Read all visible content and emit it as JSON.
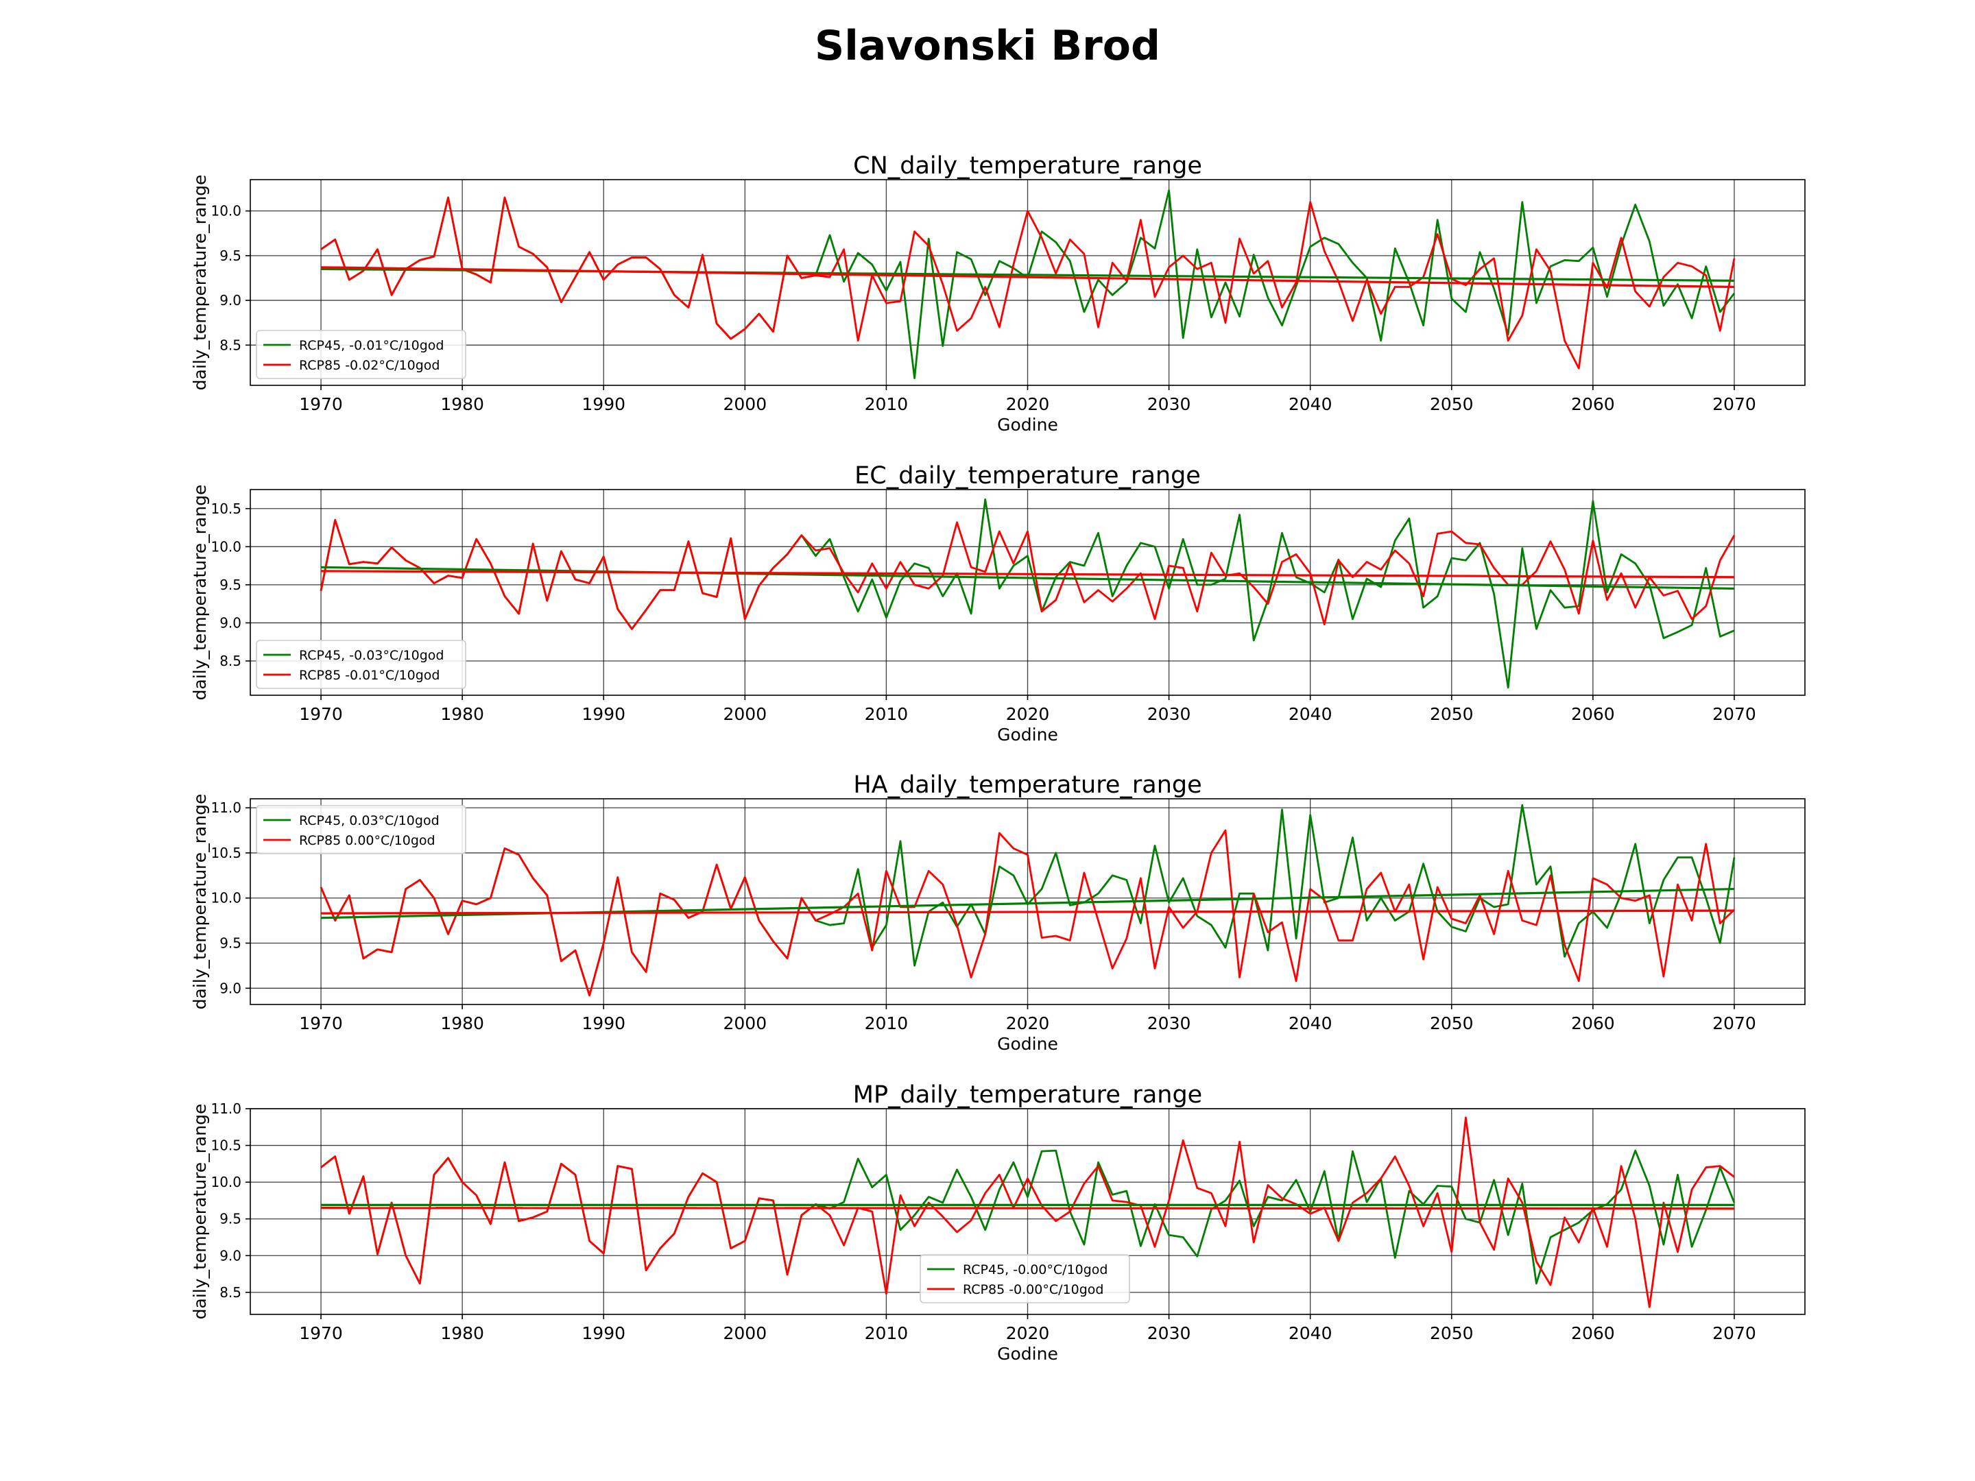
{
  "figure": {
    "title": "Slavonski Brod"
  },
  "colors": {
    "rcp45": "#008000",
    "rcp85": "#ff0000",
    "trend_overlap": "#7f4000",
    "axes": "#000000",
    "grid": "#000000"
  },
  "chart_data": [
    {
      "type": "line",
      "title": "CN_daily_temperature_range",
      "xlabel": "Godine",
      "ylabel": "daily_temperature_range",
      "xlim": [
        1965,
        2075
      ],
      "ylim": [
        8.05,
        10.35
      ],
      "xticks": [
        1970,
        1980,
        1990,
        2000,
        2010,
        2020,
        2030,
        2040,
        2050,
        2060,
        2070
      ],
      "yticks": [
        8.5,
        9.0,
        9.5,
        10.0
      ],
      "ytick_labels": [
        "8.5",
        "9.0",
        "9.5",
        "10.0"
      ],
      "grid": true,
      "legend_position": "lower-left",
      "series": [
        {
          "name": "RCP45, -0.01°C/10god",
          "color": "#008000",
          "x_start": 1970,
          "values": [
            9.57,
            9.68,
            9.23,
            9.33,
            9.57,
            9.06,
            9.35,
            9.45,
            9.49,
            10.15,
            9.35,
            9.29,
            9.2,
            10.15,
            9.6,
            9.52,
            9.37,
            8.98,
            9.26,
            9.54,
            9.23,
            9.4,
            9.48,
            9.48,
            9.35,
            9.06,
            8.92,
            9.51,
            8.74,
            8.57,
            8.68,
            8.85,
            8.65,
            9.5,
            9.25,
            9.28,
            9.73,
            9.21,
            9.53,
            9.4,
            9.11,
            9.43,
            8.13,
            9.69,
            8.49,
            9.54,
            9.46,
            9.06,
            9.44,
            9.36,
            9.25,
            9.77,
            9.65,
            9.44,
            8.87,
            9.23,
            9.06,
            9.2,
            9.7,
            9.58,
            10.23,
            8.58,
            9.57,
            8.81,
            9.2,
            8.82,
            9.51,
            9.03,
            8.72,
            9.16,
            9.6,
            9.7,
            9.63,
            9.42,
            9.25,
            8.55,
            9.58,
            9.2,
            8.72,
            9.9,
            9.02,
            8.87,
            9.54,
            9.13,
            8.62,
            10.1,
            8.97,
            9.38,
            9.45,
            9.44,
            9.59,
            9.04,
            9.62,
            10.07,
            9.66,
            8.94,
            9.18,
            8.8,
            9.38,
            8.87,
            9.08
          ]
        },
        {
          "name": "RCP85 -0.02°C/10god",
          "color": "#ff0000",
          "x_start": 1970,
          "values": [
            9.57,
            9.68,
            9.23,
            9.33,
            9.57,
            9.06,
            9.35,
            9.45,
            9.49,
            10.15,
            9.35,
            9.29,
            9.2,
            10.15,
            9.6,
            9.52,
            9.37,
            8.98,
            9.26,
            9.54,
            9.23,
            9.4,
            9.48,
            9.48,
            9.35,
            9.06,
            8.92,
            9.51,
            8.74,
            8.57,
            8.68,
            8.85,
            8.65,
            9.5,
            9.25,
            9.28,
            9.26,
            9.57,
            8.55,
            9.28,
            8.97,
            8.99,
            9.77,
            9.61,
            9.18,
            8.66,
            8.8,
            9.15,
            8.7,
            9.4,
            10.0,
            9.7,
            9.3,
            9.68,
            9.52,
            8.7,
            9.42,
            9.22,
            9.9,
            9.04,
            9.37,
            9.5,
            9.35,
            9.42,
            8.75,
            9.69,
            9.3,
            9.44,
            8.92,
            9.2,
            10.1,
            9.55,
            9.21,
            8.77,
            9.23,
            8.85,
            9.15,
            9.15,
            9.26,
            9.74,
            9.24,
            9.17,
            9.35,
            9.47,
            8.55,
            8.83,
            9.57,
            9.33,
            8.55,
            8.24,
            9.42,
            9.14,
            9.7,
            9.1,
            8.93,
            9.26,
            9.42,
            9.38,
            9.28,
            8.66,
            9.47
          ]
        }
      ],
      "trend_lines": [
        {
          "series": "RCP45, -0.01°C/10god",
          "y_start": 9.35,
          "y_end": 9.22
        },
        {
          "series": "RCP85 -0.02°C/10god",
          "y_start": 9.37,
          "y_end": 9.15
        }
      ]
    },
    {
      "type": "line",
      "title": "EC_daily_temperature_range",
      "xlabel": "Godine",
      "ylabel": "daily_temperature_range",
      "xlim": [
        1965,
        2075
      ],
      "ylim": [
        8.05,
        10.75
      ],
      "xticks": [
        1970,
        1980,
        1990,
        2000,
        2010,
        2020,
        2030,
        2040,
        2050,
        2060,
        2070
      ],
      "yticks": [
        8.5,
        9.0,
        9.5,
        10.0,
        10.5
      ],
      "ytick_labels": [
        "8.5",
        "9.0",
        "9.5",
        "10.0",
        "10.5"
      ],
      "grid": true,
      "legend_position": "lower-left",
      "series": [
        {
          "name": "RCP45, -0.03°C/10god",
          "color": "#008000",
          "x_start": 1970,
          "values": [
            9.42,
            10.35,
            9.77,
            9.8,
            9.78,
            9.99,
            9.82,
            9.72,
            9.52,
            9.62,
            9.59,
            10.1,
            9.78,
            9.35,
            9.12,
            10.04,
            9.29,
            9.94,
            9.57,
            9.52,
            9.87,
            9.18,
            8.92,
            9.17,
            9.43,
            9.43,
            10.07,
            9.39,
            9.34,
            10.11,
            9.05,
            9.49,
            9.72,
            9.9,
            10.15,
            9.88,
            10.1,
            9.6,
            9.15,
            9.57,
            9.07,
            9.55,
            9.78,
            9.72,
            9.35,
            9.65,
            9.12,
            10.62,
            9.45,
            9.75,
            9.88,
            9.15,
            9.6,
            9.8,
            9.75,
            10.18,
            9.35,
            9.75,
            10.05,
            10.0,
            9.45,
            10.1,
            9.5,
            9.5,
            9.58,
            10.42,
            8.77,
            9.3,
            10.18,
            9.6,
            9.52,
            9.4,
            9.83,
            9.05,
            9.58,
            9.47,
            10.08,
            10.37,
            9.2,
            9.35,
            9.85,
            9.82,
            10.05,
            9.38,
            8.15,
            9.98,
            8.92,
            9.43,
            9.2,
            9.22,
            10.6,
            9.4,
            9.9,
            9.78,
            9.5,
            8.8,
            8.88,
            8.97,
            9.72,
            8.82,
            8.9
          ]
        },
        {
          "name": "RCP85 -0.01°C/10god",
          "color": "#ff0000",
          "x_start": 1970,
          "values": [
            9.42,
            10.35,
            9.77,
            9.8,
            9.78,
            9.99,
            9.82,
            9.72,
            9.52,
            9.62,
            9.59,
            10.1,
            9.78,
            9.35,
            9.12,
            10.04,
            9.29,
            9.94,
            9.57,
            9.52,
            9.87,
            9.18,
            8.92,
            9.17,
            9.43,
            9.43,
            10.07,
            9.39,
            9.34,
            10.11,
            9.05,
            9.49,
            9.72,
            9.9,
            10.15,
            9.95,
            9.98,
            9.65,
            9.4,
            9.78,
            9.45,
            9.8,
            9.5,
            9.45,
            9.62,
            10.32,
            9.73,
            9.67,
            10.2,
            9.78,
            10.2,
            9.15,
            9.3,
            9.78,
            9.27,
            9.43,
            9.28,
            9.45,
            9.65,
            9.05,
            9.75,
            9.72,
            9.15,
            9.92,
            9.62,
            9.65,
            9.47,
            9.25,
            9.8,
            9.9,
            9.65,
            8.98,
            9.82,
            9.6,
            9.8,
            9.7,
            9.95,
            9.78,
            9.35,
            10.17,
            10.2,
            10.05,
            10.03,
            9.72,
            9.5,
            9.5,
            9.68,
            10.07,
            9.7,
            9.12,
            10.08,
            9.3,
            9.65,
            9.2,
            9.6,
            9.36,
            9.42,
            9.05,
            9.22,
            9.82,
            10.15
          ]
        }
      ],
      "trend_lines": [
        {
          "series": "RCP45, -0.03°C/10god",
          "y_start": 9.73,
          "y_end": 9.45
        },
        {
          "series": "RCP85 -0.01°C/10god",
          "y_start": 9.68,
          "y_end": 9.6
        }
      ]
    },
    {
      "type": "line",
      "title": "HA_daily_temperature_range",
      "xlabel": "Godine",
      "ylabel": "daily_temperature_range",
      "xlim": [
        1965,
        2075
      ],
      "ylim": [
        8.82,
        11.1
      ],
      "xticks": [
        1970,
        1980,
        1990,
        2000,
        2010,
        2020,
        2030,
        2040,
        2050,
        2060,
        2070
      ],
      "yticks": [
        9.0,
        9.5,
        10.0,
        10.5,
        11.0
      ],
      "ytick_labels": [
        "9.0",
        "9.5",
        "10.0",
        "10.5",
        "11.0"
      ],
      "grid": true,
      "legend_position": "upper-left",
      "series": [
        {
          "name": "RCP45, 0.03°C/10god",
          "color": "#008000",
          "x_start": 1970,
          "values": [
            10.12,
            9.75,
            10.03,
            9.33,
            9.43,
            9.4,
            10.1,
            10.2,
            10.0,
            9.6,
            9.97,
            9.93,
            10.0,
            10.55,
            10.48,
            10.22,
            10.03,
            9.3,
            9.42,
            8.92,
            9.5,
            10.23,
            9.4,
            9.18,
            10.05,
            9.98,
            9.78,
            9.85,
            10.37,
            9.88,
            10.23,
            9.75,
            9.52,
            9.33,
            10.0,
            9.75,
            9.7,
            9.72,
            10.32,
            9.45,
            9.7,
            10.63,
            9.25,
            9.85,
            9.95,
            9.68,
            9.93,
            9.6,
            10.35,
            10.25,
            9.93,
            10.1,
            10.5,
            9.92,
            9.95,
            10.05,
            10.25,
            10.2,
            9.72,
            10.58,
            9.95,
            10.22,
            9.8,
            9.7,
            9.45,
            10.05,
            10.05,
            9.42,
            10.98,
            9.55,
            10.92,
            9.95,
            10.0,
            10.67,
            9.75,
            10.0,
            9.75,
            9.85,
            10.38,
            9.85,
            9.68,
            9.63,
            10.0,
            9.9,
            9.93,
            11.03,
            10.15,
            10.35,
            9.35,
            9.72,
            9.85,
            9.67,
            10.05,
            10.6,
            9.72,
            10.2,
            10.45,
            10.45,
            10.0,
            9.5,
            10.45
          ]
        },
        {
          "name": "RCP85 0.00°C/10god",
          "color": "#ff0000",
          "x_start": 1970,
          "values": [
            10.12,
            9.75,
            10.03,
            9.33,
            9.43,
            9.4,
            10.1,
            10.2,
            10.0,
            9.6,
            9.97,
            9.93,
            10.0,
            10.55,
            10.48,
            10.22,
            10.03,
            9.3,
            9.42,
            8.92,
            9.5,
            10.23,
            9.4,
            9.18,
            10.05,
            9.98,
            9.78,
            9.85,
            10.37,
            9.88,
            10.23,
            9.75,
            9.52,
            9.33,
            10.0,
            9.75,
            9.82,
            9.9,
            10.05,
            9.42,
            10.3,
            9.9,
            9.9,
            10.3,
            10.15,
            9.7,
            9.12,
            9.6,
            10.72,
            10.55,
            10.48,
            9.56,
            9.58,
            9.53,
            10.28,
            9.75,
            9.22,
            9.55,
            10.22,
            9.22,
            9.9,
            9.67,
            9.85,
            10.5,
            10.75,
            9.12,
            10.05,
            9.62,
            9.73,
            9.08,
            10.1,
            9.98,
            9.53,
            9.53,
            10.1,
            10.28,
            9.85,
            10.15,
            9.32,
            10.12,
            9.77,
            9.72,
            10.03,
            9.6,
            10.3,
            9.75,
            9.7,
            10.25,
            9.48,
            9.08,
            10.22,
            10.15,
            10.0,
            9.97,
            10.03,
            9.13,
            10.15,
            9.75,
            10.6,
            9.72,
            9.87
          ]
        }
      ],
      "trend_lines": [
        {
          "series": "RCP45, 0.03°C/10god",
          "y_start": 9.78,
          "y_end": 10.1
        },
        {
          "series": "RCP85 0.00°C/10god",
          "y_start": 9.83,
          "y_end": 9.86
        }
      ]
    },
    {
      "type": "line",
      "title": "MP_daily_temperature_range",
      "xlabel": "Godine",
      "ylabel": "daily_temperature_range",
      "xlim": [
        1965,
        2075
      ],
      "ylim": [
        8.2,
        11.0
      ],
      "xticks": [
        1970,
        1980,
        1990,
        2000,
        2010,
        2020,
        2030,
        2040,
        2050,
        2060,
        2070
      ],
      "yticks": [
        8.5,
        9.0,
        9.5,
        10.0,
        10.5,
        11.0
      ],
      "ytick_labels": [
        "8.5",
        "9.0",
        "9.5",
        "10.0",
        "10.5",
        "11.0"
      ],
      "grid": true,
      "legend_position": "lower-center",
      "series": [
        {
          "name": "RCP45, -0.00°C/10god",
          "color": "#008000",
          "x_start": 1970,
          "values": [
            10.2,
            10.35,
            9.57,
            10.08,
            9.02,
            9.72,
            9.0,
            8.62,
            10.1,
            10.33,
            10.0,
            9.82,
            9.43,
            10.27,
            9.47,
            9.52,
            9.6,
            10.25,
            10.1,
            9.2,
            9.03,
            10.22,
            10.18,
            8.8,
            9.1,
            9.3,
            9.8,
            10.12,
            10.0,
            9.1,
            9.2,
            9.78,
            9.75,
            8.74,
            9.55,
            9.7,
            9.64,
            9.73,
            10.32,
            9.93,
            10.1,
            9.35,
            9.55,
            9.8,
            9.72,
            10.17,
            9.8,
            9.35,
            9.9,
            10.27,
            9.8,
            10.42,
            10.43,
            9.6,
            9.15,
            10.27,
            9.83,
            9.88,
            9.13,
            9.7,
            9.28,
            9.25,
            8.99,
            9.63,
            9.75,
            10.02,
            9.4,
            9.8,
            9.75,
            10.03,
            9.6,
            10.15,
            9.2,
            10.42,
            9.73,
            10.05,
            8.97,
            9.88,
            9.7,
            9.95,
            9.94,
            9.5,
            9.45,
            10.03,
            9.28,
            9.98,
            8.62,
            9.25,
            9.35,
            9.45,
            9.62,
            9.7,
            9.9,
            10.43,
            9.95,
            9.15,
            10.1,
            9.12,
            9.62,
            10.2,
            9.72
          ]
        },
        {
          "name": "RCP85 -0.00°C/10god",
          "color": "#ff0000",
          "x_start": 1970,
          "values": [
            10.2,
            10.35,
            9.57,
            10.08,
            9.02,
            9.72,
            9.0,
            8.62,
            10.1,
            10.33,
            10.0,
            9.82,
            9.43,
            10.27,
            9.47,
            9.52,
            9.6,
            10.25,
            10.1,
            9.2,
            9.03,
            10.22,
            10.18,
            8.8,
            9.1,
            9.3,
            9.8,
            10.12,
            10.0,
            9.1,
            9.2,
            9.78,
            9.75,
            8.74,
            9.55,
            9.7,
            9.55,
            9.14,
            9.65,
            9.6,
            8.48,
            9.82,
            9.4,
            9.72,
            9.53,
            9.32,
            9.48,
            9.85,
            10.1,
            9.65,
            10.05,
            9.68,
            9.47,
            9.6,
            9.98,
            10.22,
            9.75,
            9.73,
            9.68,
            9.12,
            9.75,
            10.57,
            9.92,
            9.85,
            9.4,
            10.55,
            9.18,
            9.96,
            9.78,
            9.7,
            9.57,
            9.65,
            9.2,
            9.72,
            9.85,
            10.05,
            10.35,
            9.95,
            9.4,
            9.85,
            9.05,
            10.88,
            9.45,
            9.08,
            10.05,
            9.72,
            8.92,
            8.6,
            9.52,
            9.18,
            9.65,
            9.12,
            10.22,
            9.5,
            8.3,
            9.72,
            9.05,
            9.9,
            10.2,
            10.22,
            10.07
          ]
        }
      ],
      "trend_lines": [
        {
          "series": "RCP45, -0.00°C/10god",
          "y_start": 9.69,
          "y_end": 9.69
        },
        {
          "series": "RCP85 -0.00°C/10god",
          "y_start": 9.65,
          "y_end": 9.64
        }
      ]
    }
  ]
}
